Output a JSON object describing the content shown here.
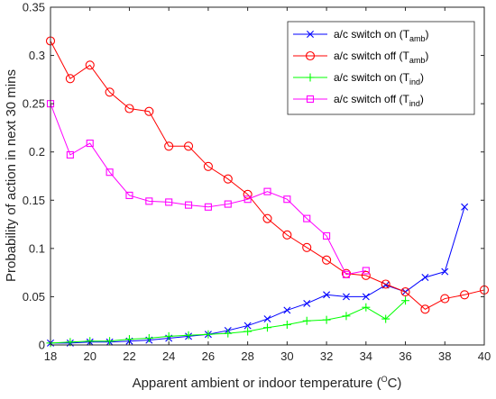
{
  "chart_data": {
    "type": "line",
    "title": "",
    "xlabel": "Apparent ambient or indoor temperature (°C)",
    "xlabel_parts": {
      "main": "Apparent ambient or indoor temperature (",
      "sup": "O",
      "tail": "C)"
    },
    "ylabel": "Probability of action in next 30 mins",
    "xlim": [
      18,
      40
    ],
    "ylim": [
      0,
      0.35
    ],
    "xticks": [
      "18",
      "20",
      "22",
      "24",
      "26",
      "28",
      "30",
      "32",
      "34",
      "36",
      "38",
      "40"
    ],
    "yticks": [
      "0",
      "0.05",
      "0.1",
      "0.15",
      "0.2",
      "0.25",
      "0.3",
      "0.35"
    ],
    "grid": false,
    "legend_position": "top-right",
    "series": [
      {
        "name": "a/c switch on (Tamb)",
        "legend_main": "a/c switch on (T",
        "legend_sub": "amb",
        "legend_close": ")",
        "color": "#0000ff",
        "marker": "x",
        "x": [
          18,
          19,
          20,
          21,
          22,
          23,
          24,
          25,
          26,
          27,
          28,
          29,
          30,
          31,
          32,
          33,
          34,
          35,
          36,
          37,
          38,
          39
        ],
        "y": [
          0.002,
          0.002,
          0.003,
          0.003,
          0.004,
          0.005,
          0.007,
          0.009,
          0.011,
          0.015,
          0.02,
          0.027,
          0.036,
          0.043,
          0.052,
          0.05,
          0.05,
          0.062,
          0.055,
          0.07,
          0.076,
          0.143
        ]
      },
      {
        "name": "a/c switch off (Tamb)",
        "legend_main": "a/c switch off (T",
        "legend_sub": "amb",
        "legend_close": ")",
        "color": "#ff0000",
        "marker": "o",
        "x": [
          18,
          19,
          20,
          21,
          22,
          23,
          24,
          25,
          26,
          27,
          28,
          29,
          30,
          31,
          32,
          33,
          34,
          35,
          36,
          37,
          38,
          39,
          40
        ],
        "y": [
          0.315,
          0.276,
          0.29,
          0.262,
          0.245,
          0.242,
          0.206,
          0.206,
          0.185,
          0.172,
          0.156,
          0.131,
          0.114,
          0.101,
          0.088,
          0.074,
          0.072,
          0.063,
          0.055,
          0.037,
          0.048,
          0.052,
          0.057
        ]
      },
      {
        "name": "a/c switch on (Tind)",
        "legend_main": "a/c switch on (T",
        "legend_sub": "ind",
        "legend_close": ")",
        "color": "#00ff00",
        "marker": "+",
        "x": [
          18,
          19,
          20,
          21,
          22,
          23,
          24,
          25,
          26,
          27,
          28,
          29,
          30,
          31,
          32,
          33,
          34,
          35,
          36
        ],
        "y": [
          0.002,
          0.003,
          0.004,
          0.004,
          0.006,
          0.007,
          0.009,
          0.01,
          0.011,
          0.012,
          0.014,
          0.018,
          0.021,
          0.025,
          0.026,
          0.03,
          0.039,
          0.027,
          0.046
        ]
      },
      {
        "name": "a/c switch off (Tind)",
        "legend_main": "a/c switch off (T",
        "legend_sub": "ind",
        "legend_close": ")",
        "color": "#ff00ff",
        "marker": "square",
        "x": [
          18,
          19,
          20,
          21,
          22,
          23,
          24,
          25,
          26,
          27,
          28,
          29,
          30,
          31,
          32,
          33,
          34
        ],
        "y": [
          0.25,
          0.197,
          0.209,
          0.179,
          0.155,
          0.149,
          0.148,
          0.145,
          0.143,
          0.146,
          0.151,
          0.159,
          0.151,
          0.131,
          0.113,
          0.073,
          0.077
        ]
      }
    ]
  }
}
